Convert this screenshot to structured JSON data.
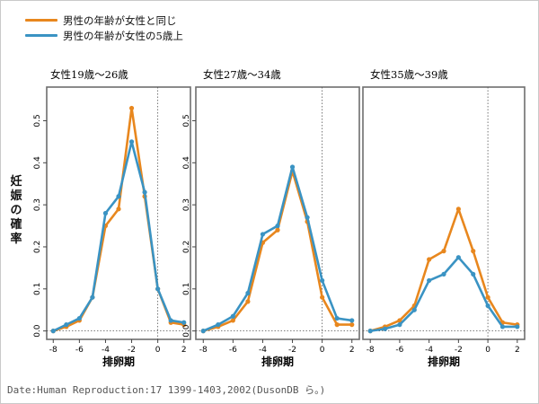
{
  "legend": [
    {
      "label": "男性の年齢が女性と同じ",
      "color": "#e8871e"
    },
    {
      "label": "男性の年齢が女性の5歳上",
      "color": "#3a93c3"
    }
  ],
  "ylabel": "妊娠の確率",
  "source": "Date:Human Reproduction:17 1399-1403,2002(DusonDB ら。)",
  "chart_data": [
    {
      "type": "line",
      "title": "女性19歳～26歳",
      "xlabel": "排卵期",
      "x": [
        -8,
        -7,
        -6,
        -5,
        -4,
        -3,
        -2,
        -1,
        0,
        1,
        2
      ],
      "xticks": [
        -8,
        -6,
        -4,
        -2,
        0,
        2
      ],
      "yticks": [
        0.0,
        0.1,
        0.2,
        0.3,
        0.4,
        0.5
      ],
      "ylim": [
        -0.02,
        0.58
      ],
      "xlim": [
        -8.5,
        2.5
      ],
      "series": [
        {
          "name": "男性の年齢が女性と同じ",
          "color": "#e8871e",
          "values": [
            0.0,
            0.01,
            0.025,
            0.08,
            0.25,
            0.29,
            0.53,
            0.32,
            0.1,
            0.02,
            0.015
          ]
        },
        {
          "name": "男性の年齢が女性の5歳上",
          "color": "#3a93c3",
          "values": [
            0.0,
            0.015,
            0.03,
            0.08,
            0.28,
            0.32,
            0.45,
            0.33,
            0.1,
            0.025,
            0.02
          ]
        }
      ]
    },
    {
      "type": "line",
      "title": "女性27歳～34歳",
      "xlabel": "排卵期",
      "x": [
        -8,
        -7,
        -6,
        -5,
        -4,
        -3,
        -2,
        -1,
        0,
        1,
        2
      ],
      "xticks": [
        -8,
        -6,
        -4,
        -2,
        0,
        2
      ],
      "yticks": [
        0.0,
        0.1,
        0.2,
        0.3,
        0.4,
        0.5
      ],
      "ylim": [
        -0.02,
        0.58
      ],
      "xlim": [
        -8.5,
        2.5
      ],
      "series": [
        {
          "name": "男性の年齢が女性と同じ",
          "color": "#e8871e",
          "values": [
            0.0,
            0.01,
            0.025,
            0.07,
            0.21,
            0.24,
            0.38,
            0.26,
            0.08,
            0.015,
            0.015
          ]
        },
        {
          "name": "男性の年齢が女性の5歳上",
          "color": "#3a93c3",
          "values": [
            0.0,
            0.015,
            0.035,
            0.09,
            0.23,
            0.25,
            0.39,
            0.27,
            0.12,
            0.03,
            0.025
          ]
        }
      ]
    },
    {
      "type": "line",
      "title": "女性35歳～39歳",
      "xlabel": "排卵期",
      "x": [
        -8,
        -7,
        -6,
        -5,
        -4,
        -3,
        -2,
        -1,
        0,
        1,
        2
      ],
      "xticks": [
        -8,
        -6,
        -4,
        -2,
        0,
        2
      ],
      "yticks": [],
      "ylim": [
        -0.02,
        0.58
      ],
      "xlim": [
        -8.5,
        2.5
      ],
      "series": [
        {
          "name": "男性の年齢が女性と同じ",
          "color": "#e8871e",
          "values": [
            0.0,
            0.01,
            0.025,
            0.06,
            0.17,
            0.19,
            0.29,
            0.19,
            0.08,
            0.02,
            0.015
          ]
        },
        {
          "name": "男性の年齢が女性の5歳上",
          "color": "#3a93c3",
          "values": [
            0.0,
            0.005,
            0.015,
            0.05,
            0.12,
            0.135,
            0.175,
            0.135,
            0.06,
            0.01,
            0.01
          ]
        }
      ]
    }
  ]
}
